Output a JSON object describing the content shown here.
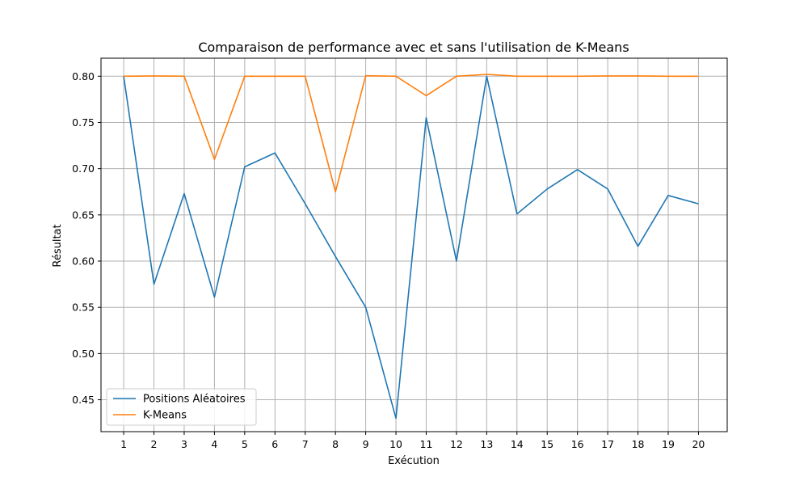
{
  "chart_data": {
    "type": "line",
    "title": "Comparaison de performance avec et sans l'utilisation de K-Means",
    "xlabel": "Exécution",
    "ylabel": "Résultat",
    "x": [
      1,
      2,
      3,
      4,
      5,
      6,
      7,
      8,
      9,
      10,
      11,
      12,
      13,
      14,
      15,
      16,
      17,
      18,
      19,
      20
    ],
    "xlim": [
      0.25,
      20.95
    ],
    "ylim": [
      0.4155,
      0.8195
    ],
    "yticks": [
      0.45,
      0.5,
      0.55,
      0.6,
      0.65,
      0.7,
      0.75,
      0.8
    ],
    "grid": true,
    "legend_position": "lower-left",
    "series": [
      {
        "name": "Positions Aléatoires",
        "color": "#1f77b4",
        "values": [
          0.8,
          0.575,
          0.673,
          0.561,
          0.702,
          0.717,
          0.662,
          0.605,
          0.55,
          0.43,
          0.755,
          0.6,
          0.8,
          0.651,
          0.678,
          0.699,
          0.678,
          0.616,
          0.671,
          0.662
        ]
      },
      {
        "name": "K-Means",
        "color": "#ff7f0e",
        "values": [
          0.8,
          0.8003,
          0.8,
          0.71,
          0.8,
          0.8,
          0.8,
          0.675,
          0.8005,
          0.8,
          0.779,
          0.8,
          0.802,
          0.8,
          0.8,
          0.8,
          0.8003,
          0.8003,
          0.8,
          0.8
        ]
      }
    ]
  }
}
